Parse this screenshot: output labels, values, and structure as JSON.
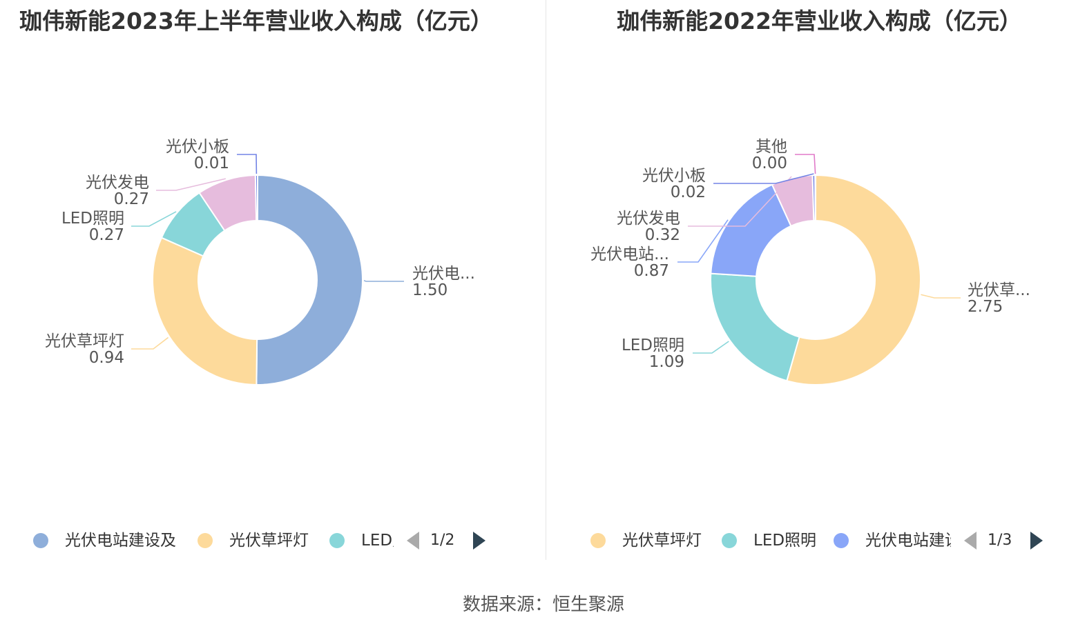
{
  "source": "数据来源：恒生聚源",
  "chart_data": [
    {
      "type": "pie",
      "variant": "donut",
      "title": "珈伟新能2023年上半年营业收入构成（亿元）",
      "series": [
        {
          "name": "光伏电站建设及运营",
          "label": "光伏电...",
          "value_label": "1.50",
          "value": 1.5,
          "color": "#8eaeda"
        },
        {
          "name": "光伏草坪灯",
          "label": "光伏草坪灯",
          "value_label": "0.94",
          "value": 0.94,
          "color": "#fdda9b"
        },
        {
          "name": "LED照明",
          "label": "LED照明",
          "value_label": "0.27",
          "value": 0.27,
          "color": "#88d6d9"
        },
        {
          "name": "光伏发电",
          "label": "光伏发电",
          "value_label": "0.27",
          "value": 0.27,
          "color": "#e6bcdd"
        },
        {
          "name": "光伏小板",
          "label": "光伏小板",
          "value_label": "0.01",
          "value": 0.01,
          "color": "#7283e5"
        }
      ],
      "legend": {
        "items": [
          {
            "text": "光伏电站建设及",
            "color": "#8eaeda"
          },
          {
            "text": "光伏草坪灯",
            "color": "#fdda9b"
          },
          {
            "text": "LED照明",
            "color": "#88d6d9"
          }
        ],
        "page": "1/2"
      }
    },
    {
      "type": "pie",
      "variant": "donut",
      "title": "珈伟新能2022年营业收入构成（亿元）",
      "series": [
        {
          "name": "光伏草坪灯",
          "label": "光伏草...",
          "value_label": "2.75",
          "value": 2.75,
          "color": "#fdda9b"
        },
        {
          "name": "LED照明",
          "label": "LED照明",
          "value_label": "1.09",
          "value": 1.09,
          "color": "#88d6d9"
        },
        {
          "name": "光伏电站建设及运营",
          "label": "光伏电站...",
          "value_label": "0.87",
          "value": 0.87,
          "color": "#89a6f8"
        },
        {
          "name": "光伏发电",
          "label": "光伏发电",
          "value_label": "0.32",
          "value": 0.32,
          "color": "#e6bcdd"
        },
        {
          "name": "光伏小板",
          "label": "光伏小板",
          "value_label": "0.02",
          "value": 0.02,
          "color": "#7283e5"
        },
        {
          "name": "其他",
          "label": "其他",
          "value_label": "0.00",
          "value": 0.004,
          "color": "#e07ac9"
        }
      ],
      "legend": {
        "items": [
          {
            "text": "光伏草坪灯",
            "color": "#fdda9b"
          },
          {
            "text": "LED照明",
            "color": "#88d6d9"
          },
          {
            "text": "光伏电站建设及运营",
            "color": "#89a6f8"
          }
        ],
        "page": "1/3"
      }
    }
  ]
}
